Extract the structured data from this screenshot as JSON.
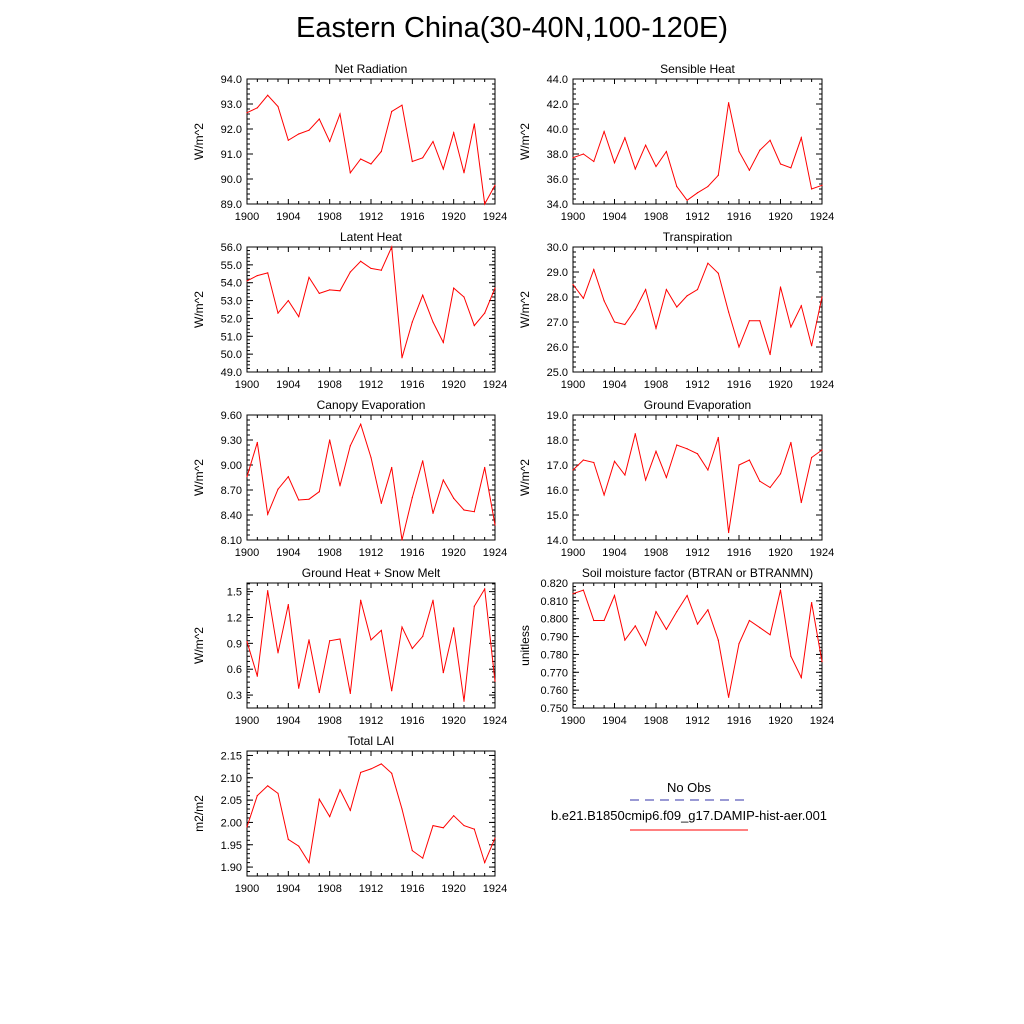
{
  "figure": {
    "title": "Eastern China(30-40N,100-120E)"
  },
  "chart_data": [
    {
      "type": "line",
      "title": "Net Radiation",
      "ylabel": "W/m^2",
      "xlim": [
        1900,
        1924
      ],
      "ylim": [
        89.0,
        94.0
      ],
      "xticks": [
        1900,
        1904,
        1908,
        1912,
        1916,
        1920,
        1924
      ],
      "yticks": [
        "89.0",
        "90.0",
        "91.0",
        "92.0",
        "93.0",
        "94.0"
      ],
      "x": [
        1900,
        1901,
        1902,
        1903,
        1904,
        1905,
        1906,
        1907,
        1908,
        1909,
        1910,
        1911,
        1912,
        1913,
        1914,
        1915,
        1916,
        1917,
        1918,
        1919,
        1920,
        1921,
        1922,
        1923,
        1924
      ],
      "values": [
        92.65,
        92.85,
        93.35,
        92.9,
        91.55,
        91.8,
        91.95,
        92.4,
        91.5,
        92.6,
        90.25,
        90.8,
        90.6,
        91.1,
        92.7,
        92.95,
        90.7,
        90.85,
        91.5,
        90.4,
        91.85,
        90.25,
        92.2,
        89.0,
        89.75
      ]
    },
    {
      "type": "line",
      "title": "Sensible Heat",
      "ylabel": "W/m^2",
      "xlim": [
        1900,
        1924
      ],
      "ylim": [
        34.0,
        44.0
      ],
      "xticks": [
        1900,
        1904,
        1908,
        1912,
        1916,
        1920,
        1924
      ],
      "yticks": [
        "34.0",
        "36.0",
        "38.0",
        "40.0",
        "42.0",
        "44.0"
      ],
      "x": [
        1900,
        1901,
        1902,
        1903,
        1904,
        1905,
        1906,
        1907,
        1908,
        1909,
        1910,
        1911,
        1912,
        1913,
        1914,
        1915,
        1916,
        1917,
        1918,
        1919,
        1920,
        1921,
        1922,
        1923,
        1924
      ],
      "values": [
        37.7,
        38.0,
        37.4,
        39.8,
        37.3,
        39.3,
        36.8,
        38.7,
        37.0,
        38.2,
        35.4,
        34.3,
        34.9,
        35.4,
        36.3,
        42.1,
        38.2,
        36.7,
        38.3,
        39.1,
        37.2,
        36.9,
        39.3,
        35.2,
        35.5
      ]
    },
    {
      "type": "line",
      "title": "Latent Heat",
      "ylabel": "W/m^2",
      "xlim": [
        1900,
        1924
      ],
      "ylim": [
        49.0,
        56.0
      ],
      "xticks": [
        1900,
        1904,
        1908,
        1912,
        1916,
        1920,
        1924
      ],
      "yticks": [
        "49.0",
        "50.0",
        "51.0",
        "52.0",
        "53.0",
        "54.0",
        "55.0",
        "56.0"
      ],
      "x": [
        1900,
        1901,
        1902,
        1903,
        1904,
        1905,
        1906,
        1907,
        1908,
        1909,
        1910,
        1911,
        1912,
        1913,
        1914,
        1915,
        1916,
        1917,
        1918,
        1919,
        1920,
        1921,
        1922,
        1923,
        1924
      ],
      "values": [
        54.1,
        54.4,
        54.55,
        52.3,
        53.0,
        52.1,
        54.3,
        53.4,
        53.6,
        53.55,
        54.6,
        55.2,
        54.8,
        54.7,
        56.0,
        49.8,
        51.8,
        53.3,
        51.8,
        50.65,
        53.7,
        53.2,
        51.6,
        52.3,
        53.7
      ]
    },
    {
      "type": "line",
      "title": "Transpiration",
      "ylabel": "W/m^2",
      "xlim": [
        1900,
        1924
      ],
      "ylim": [
        25.0,
        30.0
      ],
      "xticks": [
        1900,
        1904,
        1908,
        1912,
        1916,
        1920,
        1924
      ],
      "yticks": [
        "25.0",
        "26.0",
        "27.0",
        "28.0",
        "29.0",
        "30.0"
      ],
      "x": [
        1900,
        1901,
        1902,
        1903,
        1904,
        1905,
        1906,
        1907,
        1908,
        1909,
        1910,
        1911,
        1912,
        1913,
        1914,
        1915,
        1916,
        1917,
        1918,
        1919,
        1920,
        1921,
        1922,
        1923,
        1924
      ],
      "values": [
        28.5,
        27.95,
        29.1,
        27.85,
        27.0,
        26.9,
        27.5,
        28.3,
        26.75,
        28.3,
        27.6,
        28.05,
        28.3,
        29.35,
        28.95,
        27.4,
        26.0,
        27.05,
        27.05,
        25.7,
        28.4,
        26.8,
        27.65,
        26.05,
        28.0
      ]
    },
    {
      "type": "line",
      "title": "Canopy Evaporation",
      "ylabel": "W/m^2",
      "xlim": [
        1900,
        1924
      ],
      "ylim": [
        8.1,
        9.6
      ],
      "xticks": [
        1900,
        1904,
        1908,
        1912,
        1916,
        1920,
        1924
      ],
      "yticks": [
        "8.10",
        "8.40",
        "8.70",
        "9.00",
        "9.30",
        "9.60"
      ],
      "x": [
        1900,
        1901,
        1902,
        1903,
        1904,
        1905,
        1906,
        1907,
        1908,
        1909,
        1910,
        1911,
        1912,
        1913,
        1914,
        1915,
        1916,
        1917,
        1918,
        1919,
        1920,
        1921,
        1922,
        1923,
        1924
      ],
      "values": [
        8.86,
        9.27,
        8.41,
        8.71,
        8.86,
        8.58,
        8.59,
        8.68,
        9.3,
        8.75,
        9.23,
        9.49,
        9.09,
        8.54,
        8.97,
        8.1,
        8.61,
        9.05,
        8.42,
        8.82,
        8.6,
        8.46,
        8.44,
        8.97,
        8.28
      ]
    },
    {
      "type": "line",
      "title": "Ground Evaporation",
      "ylabel": "W/m^2",
      "xlim": [
        1900,
        1924
      ],
      "ylim": [
        14.0,
        19.0
      ],
      "xticks": [
        1900,
        1904,
        1908,
        1912,
        1916,
        1920,
        1924
      ],
      "yticks": [
        "14.0",
        "15.0",
        "16.0",
        "17.0",
        "18.0",
        "19.0"
      ],
      "x": [
        1900,
        1901,
        1902,
        1903,
        1904,
        1905,
        1906,
        1907,
        1908,
        1909,
        1910,
        1911,
        1912,
        1913,
        1914,
        1915,
        1916,
        1917,
        1918,
        1919,
        1920,
        1921,
        1922,
        1923,
        1924
      ],
      "values": [
        16.8,
        17.2,
        17.1,
        15.8,
        17.15,
        16.6,
        18.25,
        16.4,
        17.55,
        16.5,
        17.8,
        17.65,
        17.45,
        16.8,
        18.1,
        14.3,
        17.0,
        17.2,
        16.35,
        16.1,
        16.65,
        17.9,
        15.5,
        17.3,
        17.6
      ]
    },
    {
      "type": "line",
      "title": "Ground Heat + Snow Melt",
      "ylabel": "W/m^2",
      "xlim": [
        1900,
        1924
      ],
      "ylim": [
        0.15,
        1.6
      ],
      "xticks": [
        1900,
        1904,
        1908,
        1912,
        1916,
        1920,
        1924
      ],
      "yticks": [
        "0.3",
        "0.6",
        "0.9",
        "1.2",
        "1.5"
      ],
      "x": [
        1900,
        1901,
        1902,
        1903,
        1904,
        1905,
        1906,
        1907,
        1908,
        1909,
        1910,
        1911,
        1912,
        1913,
        1914,
        1915,
        1916,
        1917,
        1918,
        1919,
        1920,
        1921,
        1922,
        1923,
        1924
      ],
      "values": [
        0.92,
        0.52,
        1.51,
        0.79,
        1.35,
        0.38,
        0.94,
        0.33,
        0.93,
        0.95,
        0.32,
        1.4,
        0.94,
        1.05,
        0.35,
        1.09,
        0.84,
        0.98,
        1.4,
        0.56,
        1.08,
        0.23,
        1.33,
        1.53,
        0.46
      ]
    },
    {
      "type": "line",
      "title": "Soil moisture factor (BTRAN or BTRANMN)",
      "ylabel": "unitless",
      "xlim": [
        1900,
        1924
      ],
      "ylim": [
        0.75,
        0.82
      ],
      "xticks": [
        1900,
        1904,
        1908,
        1912,
        1916,
        1920,
        1924
      ],
      "yticks": [
        "0.750",
        "0.760",
        "0.770",
        "0.780",
        "0.790",
        "0.800",
        "0.810",
        "0.820"
      ],
      "x": [
        1900,
        1901,
        1902,
        1903,
        1904,
        1905,
        1906,
        1907,
        1908,
        1909,
        1910,
        1911,
        1912,
        1913,
        1914,
        1915,
        1916,
        1917,
        1918,
        1919,
        1920,
        1921,
        1922,
        1923,
        1924
      ],
      "values": [
        0.814,
        0.816,
        0.799,
        0.799,
        0.813,
        0.788,
        0.796,
        0.785,
        0.804,
        0.794,
        0.804,
        0.813,
        0.797,
        0.805,
        0.788,
        0.756,
        0.786,
        0.799,
        0.795,
        0.791,
        0.816,
        0.779,
        0.767,
        0.809,
        0.776
      ]
    },
    {
      "type": "line",
      "title": "Total LAI",
      "ylabel": "m2/m2",
      "xlim": [
        1900,
        1924
      ],
      "ylim": [
        1.88,
        2.16
      ],
      "xticks": [
        1900,
        1904,
        1908,
        1912,
        1916,
        1920,
        1924
      ],
      "yticks": [
        "1.90",
        "1.95",
        "2.00",
        "2.05",
        "2.10",
        "2.15"
      ],
      "x": [
        1900,
        1901,
        1902,
        1903,
        1904,
        1905,
        1906,
        1907,
        1908,
        1909,
        1910,
        1911,
        1912,
        1913,
        1914,
        1915,
        1916,
        1917,
        1918,
        1919,
        1920,
        1921,
        1922,
        1923,
        1924
      ],
      "values": [
        1.99,
        2.06,
        2.082,
        2.065,
        1.962,
        1.947,
        1.91,
        2.052,
        2.013,
        2.073,
        2.027,
        2.112,
        2.12,
        2.131,
        2.11,
        2.03,
        1.937,
        1.92,
        1.993,
        1.988,
        2.015,
        1.993,
        1.985,
        1.91,
        1.965
      ]
    }
  ],
  "legend": {
    "items": [
      {
        "label": "No Obs",
        "color": "#3333aa",
        "style": "dashed"
      },
      {
        "label": "b.e21.B1850cmip6.f09_g17.DAMIP-hist-aer.001",
        "color": "#ff0000",
        "style": "solid"
      }
    ]
  },
  "colors": {
    "series": "#ff0000",
    "axis": "#000000"
  }
}
